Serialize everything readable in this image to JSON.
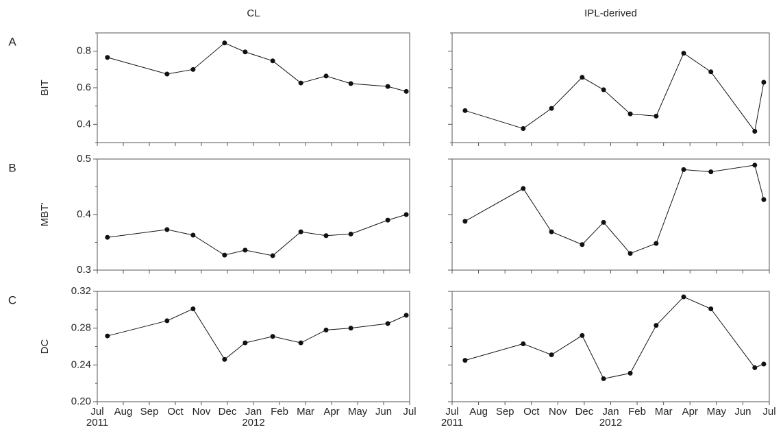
{
  "chart_data": [
    {
      "type": "line",
      "title": "CL",
      "panel_label": "A",
      "ylabel": "BIT",
      "x": [
        0.39,
        2.68,
        3.68,
        4.89,
        5.68,
        6.74,
        7.82,
        8.79,
        9.74,
        11.16,
        11.87
      ],
      "values": [
        0.766,
        0.675,
        0.7,
        0.845,
        0.796,
        0.747,
        0.626,
        0.664,
        0.623,
        0.607,
        0.58
      ],
      "color": "#111111",
      "xlim": [
        0,
        12
      ],
      "xticks": [
        0,
        1,
        2,
        3,
        4,
        5,
        6,
        7,
        8,
        9,
        10,
        11,
        12
      ],
      "ylim": [
        0.3,
        0.9
      ],
      "yticks": [
        0.4,
        0.6,
        0.8
      ],
      "yminor": [
        0.3,
        0.5,
        0.7,
        0.9
      ],
      "show_ytick_labels": true
    },
    {
      "type": "line",
      "title": "IPL-derived",
      "x": [
        0.49,
        2.69,
        3.76,
        4.92,
        5.73,
        6.74,
        7.72,
        8.76,
        9.79,
        11.45,
        11.79
      ],
      "values": [
        0.475,
        0.377,
        0.487,
        0.657,
        0.589,
        0.457,
        0.445,
        0.789,
        0.687,
        0.362,
        0.63
      ],
      "color": "#111111",
      "xlim": [
        0,
        12
      ],
      "xticks": [
        0,
        1,
        2,
        3,
        4,
        5,
        6,
        7,
        8,
        9,
        10,
        11,
        12
      ],
      "ylim": [
        0.3,
        0.9
      ],
      "yticks": [
        0.4,
        0.6,
        0.8
      ],
      "yminor": [
        0.3,
        0.5,
        0.7,
        0.9
      ],
      "show_ytick_labels": false
    },
    {
      "type": "line",
      "panel_label": "B",
      "ylabel": "MBT'",
      "x": [
        0.39,
        2.68,
        3.68,
        4.89,
        5.68,
        6.74,
        7.82,
        8.79,
        9.74,
        11.16,
        11.87
      ],
      "values": [
        0.359,
        0.373,
        0.363,
        0.327,
        0.336,
        0.326,
        0.369,
        0.362,
        0.365,
        0.39,
        0.4
      ],
      "color": "#111111",
      "xlim": [
        0,
        12
      ],
      "xticks": [
        0,
        1,
        2,
        3,
        4,
        5,
        6,
        7,
        8,
        9,
        10,
        11,
        12
      ],
      "ylim": [
        0.3,
        0.5
      ],
      "yticks": [
        0.3,
        0.4,
        0.5
      ],
      "yminor": [
        0.35,
        0.45
      ],
      "show_ytick_labels": true
    },
    {
      "type": "line",
      "x": [
        0.49,
        2.69,
        3.76,
        4.92,
        5.73,
        6.74,
        7.72,
        8.76,
        9.79,
        11.45,
        11.79
      ],
      "values": [
        0.388,
        0.447,
        0.369,
        0.346,
        0.386,
        0.33,
        0.348,
        0.481,
        0.477,
        0.489,
        0.427
      ],
      "color": "#111111",
      "xlim": [
        0,
        12
      ],
      "xticks": [
        0,
        1,
        2,
        3,
        4,
        5,
        6,
        7,
        8,
        9,
        10,
        11,
        12
      ],
      "ylim": [
        0.3,
        0.5
      ],
      "yticks": [
        0.3,
        0.4,
        0.5
      ],
      "yminor": [
        0.35,
        0.45
      ],
      "show_ytick_labels": false
    },
    {
      "type": "line",
      "panel_label": "C",
      "ylabel": "DC",
      "x": [
        0.39,
        2.68,
        3.68,
        4.89,
        5.68,
        6.74,
        7.82,
        8.79,
        9.74,
        11.16,
        11.87
      ],
      "values": [
        0.2715,
        0.288,
        0.301,
        0.246,
        0.264,
        0.271,
        0.264,
        0.278,
        0.28,
        0.285,
        0.294
      ],
      "color": "#111111",
      "xlim": [
        0,
        12
      ],
      "xticks": [
        {
          "value": 0,
          "label": "Jul"
        },
        {
          "value": 1,
          "label": "Aug"
        },
        {
          "value": 2,
          "label": "Sep"
        },
        {
          "value": 3,
          "label": "Oct"
        },
        {
          "value": 4,
          "label": "Nov"
        },
        {
          "value": 5,
          "label": "Dec"
        },
        {
          "value": 6,
          "label": "Jan"
        },
        {
          "value": 7,
          "label": "Feb"
        },
        {
          "value": 8,
          "label": "Mar"
        },
        {
          "value": 9,
          "label": "Apr"
        },
        {
          "value": 10,
          "label": "May"
        },
        {
          "value": 11,
          "label": "Jun"
        },
        {
          "value": 12,
          "label": "Jul"
        }
      ],
      "xtick_years": [
        {
          "value": 0,
          "label": "2011"
        },
        {
          "value": 6,
          "label": "2012"
        }
      ],
      "ylim": [
        0.2,
        0.32
      ],
      "yticks": [
        {
          "value": 0.2,
          "label": "0.20"
        },
        0.24,
        0.28,
        0.32
      ],
      "yminor": [
        0.22,
        0.26,
        0.3
      ],
      "show_ytick_labels": true
    },
    {
      "type": "line",
      "x": [
        0.49,
        2.69,
        3.76,
        4.92,
        5.73,
        6.74,
        7.72,
        8.76,
        9.79,
        11.45,
        11.79
      ],
      "values": [
        0.245,
        0.263,
        0.251,
        0.272,
        0.225,
        0.231,
        0.283,
        0.314,
        0.301,
        0.237,
        0.241
      ],
      "color": "#111111",
      "xlim": [
        0,
        12
      ],
      "xticks": [
        {
          "value": 0,
          "label": "Jul"
        },
        {
          "value": 1,
          "label": "Aug"
        },
        {
          "value": 2,
          "label": "Sep"
        },
        {
          "value": 3,
          "label": "Oct"
        },
        {
          "value": 4,
          "label": "Nov"
        },
        {
          "value": 5,
          "label": "Dec"
        },
        {
          "value": 6,
          "label": "Jan"
        },
        {
          "value": 7,
          "label": "Feb"
        },
        {
          "value": 8,
          "label": "Mar"
        },
        {
          "value": 9,
          "label": "Apr"
        },
        {
          "value": 10,
          "label": "May"
        },
        {
          "value": 11,
          "label": "Jun"
        },
        {
          "value": 12,
          "label": "Jul"
        }
      ],
      "xtick_years": [
        {
          "value": 0,
          "label": "2011"
        },
        {
          "value": 6,
          "label": "2012"
        }
      ],
      "ylim": [
        0.2,
        0.32
      ],
      "yticks": [
        0.2,
        0.24,
        0.28,
        0.32
      ],
      "yminor": [
        0.22,
        0.26,
        0.3
      ],
      "show_ytick_labels": false
    }
  ]
}
